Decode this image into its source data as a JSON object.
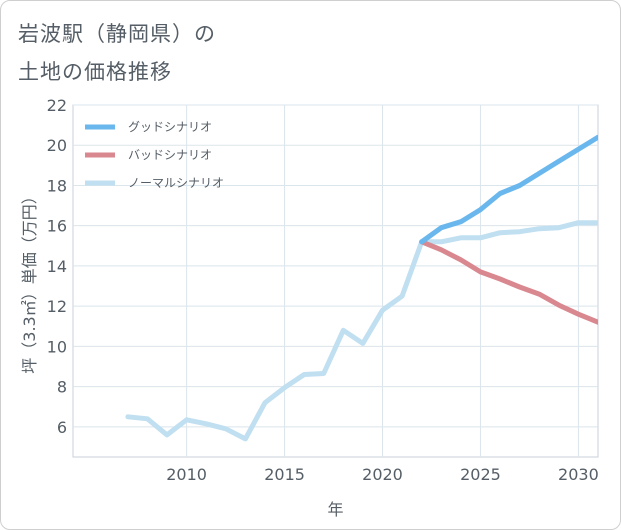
{
  "title_lines": [
    "岩波駅（静岡県）の",
    "土地の価格推移"
  ],
  "chart_data": {
    "type": "line",
    "title": "岩波駅（静岡県）の土地の価格推移",
    "xlabel": "年",
    "ylabel": "坪（3.3㎡）単価（万円）",
    "xlim": [
      2004.2,
      2031
    ],
    "ylim": [
      4.5,
      22
    ],
    "xticks": [
      2010,
      2015,
      2020,
      2025,
      2030
    ],
    "yticks": [
      6,
      8,
      10,
      12,
      14,
      16,
      18,
      20,
      22
    ],
    "grid": true,
    "legend_position": "top-left",
    "series": [
      {
        "name": "グッドシナリオ",
        "color": "#6ab7ee",
        "x": [
          2022,
          2023,
          2024,
          2025,
          2026,
          2027,
          2028,
          2029,
          2030,
          2031
        ],
        "values": [
          15.2,
          15.9,
          16.2,
          16.8,
          17.6,
          18.0,
          18.6,
          19.2,
          19.8,
          20.4
        ]
      },
      {
        "name": "バッドシナリオ",
        "color": "#d98890",
        "x": [
          2022,
          2023,
          2024,
          2025,
          2026,
          2027,
          2028,
          2029,
          2030,
          2031
        ],
        "values": [
          15.2,
          14.8,
          14.3,
          13.7,
          13.35,
          12.95,
          12.6,
          12.05,
          11.6,
          11.2
        ]
      },
      {
        "name": "ノーマルシナリオ",
        "color": "#c0dff0",
        "x": [
          2007,
          2008,
          2009,
          2010,
          2011,
          2012,
          2013,
          2014,
          2015,
          2016,
          2017,
          2018,
          2019,
          2020,
          2021,
          2022,
          2023,
          2024,
          2025,
          2026,
          2027,
          2028,
          2029,
          2030,
          2031
        ],
        "values": [
          6.5,
          6.4,
          5.6,
          6.35,
          6.15,
          5.9,
          5.4,
          7.2,
          7.95,
          8.6,
          8.65,
          10.8,
          10.15,
          11.8,
          12.5,
          15.2,
          15.2,
          15.4,
          15.4,
          15.65,
          15.7,
          15.85,
          15.9,
          16.15,
          16.15
        ]
      }
    ]
  }
}
